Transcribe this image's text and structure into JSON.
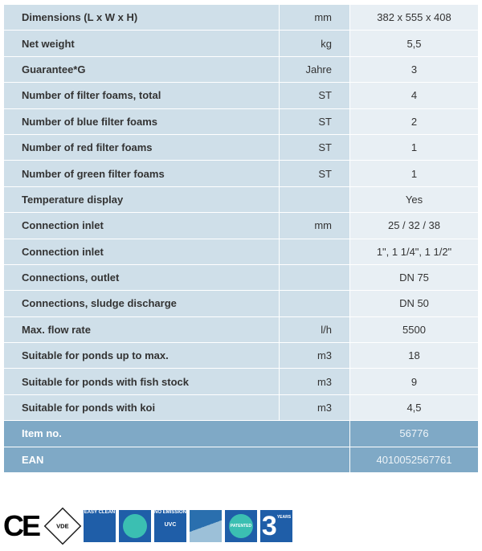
{
  "specs": [
    {
      "label": "Dimensions (L x W x H)",
      "unit": "mm",
      "value": "382 x 555 x 408"
    },
    {
      "label": "Net weight",
      "unit": "kg",
      "value": "5,5"
    },
    {
      "label": "Guarantee*G",
      "unit": "Jahre",
      "value": "3"
    },
    {
      "label": "Number of filter foams, total",
      "unit": "ST",
      "value": "4"
    },
    {
      "label": "Number of blue filter foams",
      "unit": "ST",
      "value": "2"
    },
    {
      "label": "Number of red filter foams",
      "unit": "ST",
      "value": "1"
    },
    {
      "label": "Number of green filter foams",
      "unit": "ST",
      "value": "1"
    },
    {
      "label": "Temperature display",
      "unit": "",
      "value": "Yes"
    },
    {
      "label": "Connection inlet",
      "unit": "mm",
      "value": "25 / 32 / 38"
    },
    {
      "label": "Connection inlet",
      "unit": "",
      "value": "1\", 1 1/4\", 1 1/2\""
    },
    {
      "label": "Connections, outlet",
      "unit": "",
      "value": "DN 75"
    },
    {
      "label": "Connections, sludge discharge",
      "unit": "",
      "value": "DN 50"
    },
    {
      "label": "Max. flow rate",
      "unit": "l/h",
      "value": "5500"
    },
    {
      "label": "Suitable for ponds up to max.",
      "unit": "m3",
      "value": "18"
    },
    {
      "label": "Suitable for ponds with fish stock",
      "unit": "m3",
      "value": "9"
    },
    {
      "label": "Suitable for ponds with koi",
      "unit": "m3",
      "value": "4,5"
    }
  ],
  "ids": [
    {
      "label": "Item no.",
      "value": "56776"
    },
    {
      "label": "EAN",
      "value": "4010052567761"
    }
  ],
  "badges": {
    "ce": "CE",
    "vde": "VDE",
    "easy_clean": "EASY CLEAN",
    "no_emission": "NO EMISSION",
    "uvc": "UVC",
    "patented": "PATENTED",
    "years_num": "3",
    "years": "YEARS"
  }
}
